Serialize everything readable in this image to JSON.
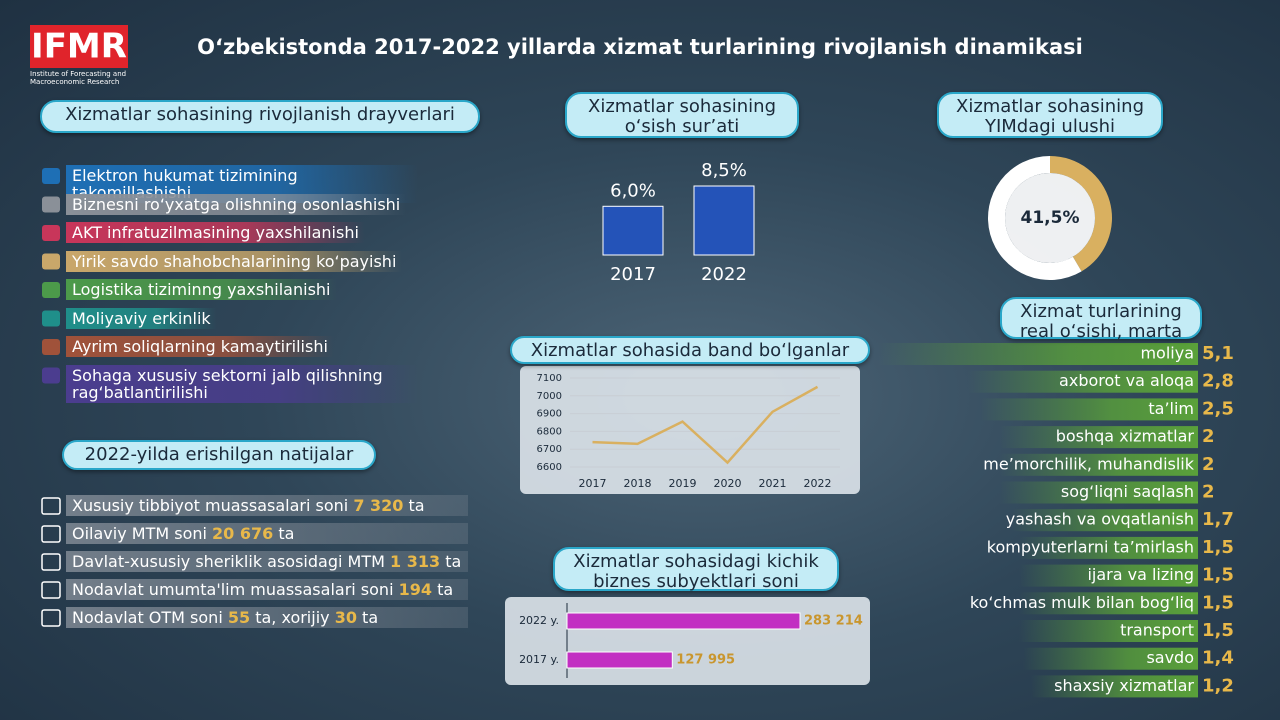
{
  "header": {
    "logo": "IFMR",
    "logo_subtitle": "Institute of Forecasting and Macroeconomic Research",
    "title": "O‘zbekistonda 2017-2022 yillarda xizmat turlarining rivojlanish dinamikasi"
  },
  "drivers": {
    "title": "Xizmatlar sohasining rivojlanish drayverlari",
    "items": [
      {
        "text": "Elektron hukumat tizimining takomillashishi",
        "color": "#1e6fb5"
      },
      {
        "text": "Biznesni ro‘yxatga olishning osonlashishi",
        "color": "#8a9098"
      },
      {
        "text": "AKT infratuzilmasining yaxshilanishi",
        "color": "#c8365a"
      },
      {
        "text": "Yirik savdo shahobchalarining ko‘payishi",
        "color": "#c9a76a"
      },
      {
        "text": "Logistika tiziminng yaxshilanishi",
        "color": "#4c9a4a"
      },
      {
        "text": "Moliyaviy erkinlik",
        "color": "#1f8f8a"
      },
      {
        "text": "Ayrim soliqlarning kamaytirilishi",
        "color": "#a0523a"
      },
      {
        "text": "Sohaga xususiy sektorni jalb qilishning rag‘batlantirilishi",
        "color": "#4b3d8f"
      }
    ]
  },
  "results": {
    "title": "2022-yilda erishilgan natijalar",
    "items": [
      [
        "Xususiy tibbiyot muassasalari soni ",
        "7 320",
        " ta"
      ],
      [
        "Oilaviy MTM soni ",
        "20 676",
        " ta"
      ],
      [
        "Davlat-xususiy sheriklik asosidagi MTM ",
        "1 313",
        " ta"
      ],
      [
        "Nodavlat umumta'lim muassasalari soni ",
        "194",
        " ta"
      ],
      [
        "Nodavlat OTM soni ",
        "55",
        " ta, xorijiy ",
        "30",
        " ta"
      ]
    ]
  },
  "chart_data": [
    {
      "type": "bar",
      "title": "Xizmatlar sohasining o‘sish sur’ati",
      "categories": [
        "2017",
        "2022"
      ],
      "values": [
        6.0,
        8.5
      ],
      "value_labels": [
        "6,0%",
        "8,5%"
      ],
      "color": "#2453b8"
    },
    {
      "type": "pie",
      "title": "Xizmatlar sohasining YIMdagi ulushi",
      "values": [
        41.5,
        58.5
      ],
      "value_labels": [
        "41,5%",
        null
      ],
      "colors": [
        "#d9b060",
        "#ffffff"
      ]
    },
    {
      "type": "line",
      "title": "Xizmatlar sohasida band bo‘lganlar",
      "categories": [
        "2017",
        "2018",
        "2019",
        "2020",
        "2021",
        "2022"
      ],
      "values": [
        6740,
        6730,
        6855,
        6625,
        6910,
        7050
      ],
      "color": "#d9b060",
      "ylim": [
        6600,
        7100
      ],
      "yticks": [
        6600,
        6700,
        6800,
        6900,
        7000,
        7100
      ],
      "grid": true
    },
    {
      "type": "barh",
      "title": "Xizmatlar sohasidagi kichik biznes subyektlari soni",
      "categories": [
        "2022 y.",
        "2017 y."
      ],
      "values": [
        283214,
        127995
      ],
      "value_labels": [
        "283 214",
        "127 995"
      ],
      "color": "#c22fc2"
    },
    {
      "type": "barh",
      "title": "Xizmat turlarining real o‘sishi, marta",
      "categories": [
        "moliya",
        "axborot va aloqa",
        "ta’lim",
        "boshqa xizmatlar",
        "me’morchilik, muhandislik",
        "sog‘liqni saqlash",
        "yashash va ovqatlanish",
        "kompyuterlarni ta’mirlash",
        "ijara va lizing",
        "ko‘chmas mulk bilan bog‘liq",
        "transport",
        "savdo",
        "shaxsiy xizmatlar"
      ],
      "values": [
        5.1,
        2.8,
        2.5,
        2,
        2,
        2,
        1.7,
        1.5,
        1.5,
        1.5,
        1.5,
        1.4,
        1.2
      ],
      "value_labels": [
        "5,1",
        "2,8",
        "2,5",
        "2",
        "2",
        "2",
        "1,7",
        "1,5",
        "1,5",
        "1,5",
        "1,5",
        "1,4",
        "1,2"
      ],
      "color": "#5aa13a"
    }
  ]
}
